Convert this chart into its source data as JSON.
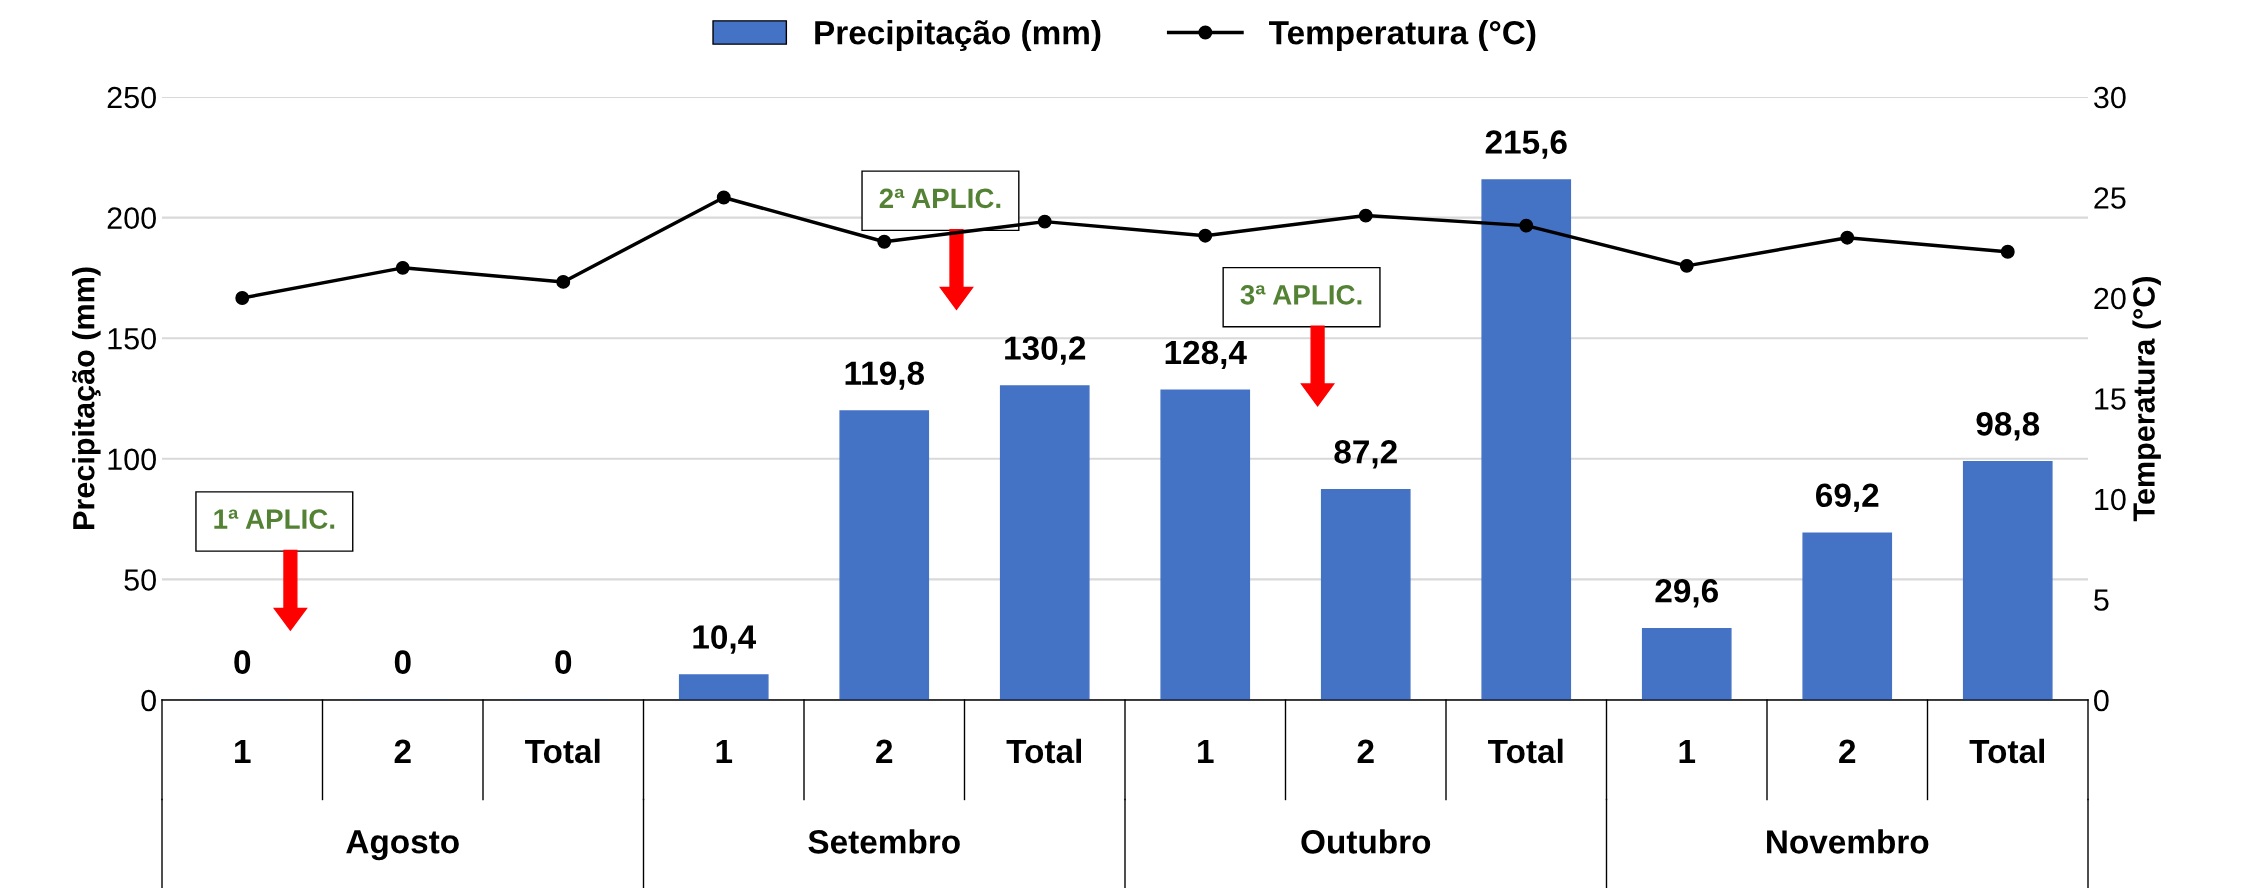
{
  "chart_data": {
    "type": "bar",
    "ylabel": "Precipitação (mm)",
    "y2label": "Temperatura (°C)",
    "categories": [
      "1",
      "2",
      "Total",
      "1",
      "2",
      "Total",
      "1",
      "2",
      "Total",
      "1",
      "2",
      "Total"
    ],
    "series": [
      {
        "name": "Precipitação (mm)",
        "type": "bar",
        "color": "#4472c4",
        "values": [
          0,
          0,
          0,
          10.4,
          119.8,
          130.2,
          128.4,
          87.2,
          215.6,
          29.6,
          69.2,
          98.8
        ],
        "value_labels": [
          "0",
          "0",
          "0",
          "10,4",
          "119,8",
          "130,2",
          "128,4",
          "87,2",
          "215,6",
          "29,6",
          "69,2",
          "98,8"
        ]
      },
      {
        "name": "Temperatura (°C)",
        "type": "line",
        "axis": "y2",
        "color": "#000000",
        "marker": "circle",
        "values": [
          20.0,
          21.5,
          20.8,
          25.0,
          22.8,
          23.8,
          23.1,
          24.1,
          23.6,
          21.6,
          23.0,
          22.3
        ]
      }
    ],
    "ylim": [
      0,
      250
    ],
    "yticks": [
      0,
      50,
      100,
      150,
      200,
      250
    ],
    "y2lim": [
      0,
      30
    ],
    "y2ticks": [
      0,
      5,
      10,
      15,
      20,
      25,
      30
    ],
    "grid": "y",
    "legend": "top",
    "annotations": [
      "1ª APLIC.",
      "2ª APLIC.",
      "3ª APLIC.",
      "Agosto",
      "Setembro",
      "Outubro",
      "Novembro"
    ]
  }
}
